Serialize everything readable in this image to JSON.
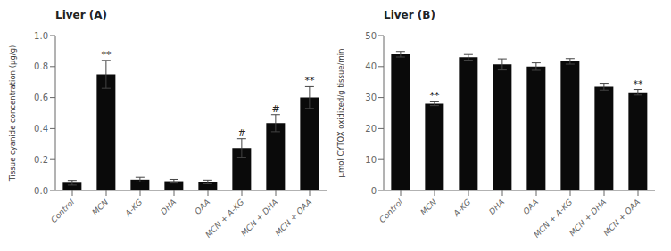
{
  "chart_data": [
    {
      "type": "bar",
      "title": "Liver (A)",
      "ylabel": "Tissue cyanide concentration (μg/g)",
      "categories": [
        "Control",
        "MCN",
        "A-KG",
        "DHA",
        "OAA",
        "MCN + A-KG",
        "MCN + DHA",
        "MCN + OAA"
      ],
      "values": [
        0.05,
        0.75,
        0.07,
        0.06,
        0.055,
        0.275,
        0.435,
        0.6
      ],
      "errors": [
        0.015,
        0.09,
        0.015,
        0.012,
        0.012,
        0.06,
        0.055,
        0.07
      ],
      "color": "#0a0a0a",
      "ylim": [
        0,
        1.0
      ],
      "yticks": [
        {
          "value": 0,
          "label": "0.0"
        },
        0.2,
        0.4,
        0.6,
        0.8,
        {
          "value": 1,
          "label": "1.0"
        }
      ],
      "grid": false,
      "annotations": [
        {
          "category": "MCN",
          "text": "**"
        },
        {
          "category": "MCN + A-KG",
          "text": "#"
        },
        {
          "category": "MCN + DHA",
          "text": "#"
        },
        {
          "category": "MCN + OAA",
          "text": "**"
        }
      ]
    },
    {
      "type": "bar",
      "title": "Liver (B)",
      "ylabel": "μmol CYTOX oxidized/g tissue/min",
      "categories": [
        "Control",
        "MCN",
        "A-KG",
        "DHA",
        "OAA",
        "MCN + A-KG",
        "MCN + DHA",
        "MCN + OAA"
      ],
      "values": [
        44.0,
        28.0,
        43.0,
        40.7,
        40.0,
        41.7,
        33.5,
        31.7
      ],
      "errors": [
        0.9,
        0.6,
        0.9,
        1.8,
        1.2,
        0.9,
        1.1,
        0.9
      ],
      "color": "#0a0a0a",
      "ylim": [
        0,
        50
      ],
      "yticks": [
        0,
        10,
        20,
        30,
        40,
        50
      ],
      "grid": false,
      "annotations": [
        {
          "category": "MCN",
          "text": "**"
        },
        {
          "category": "MCN + OAA",
          "text": "**"
        }
      ]
    }
  ]
}
